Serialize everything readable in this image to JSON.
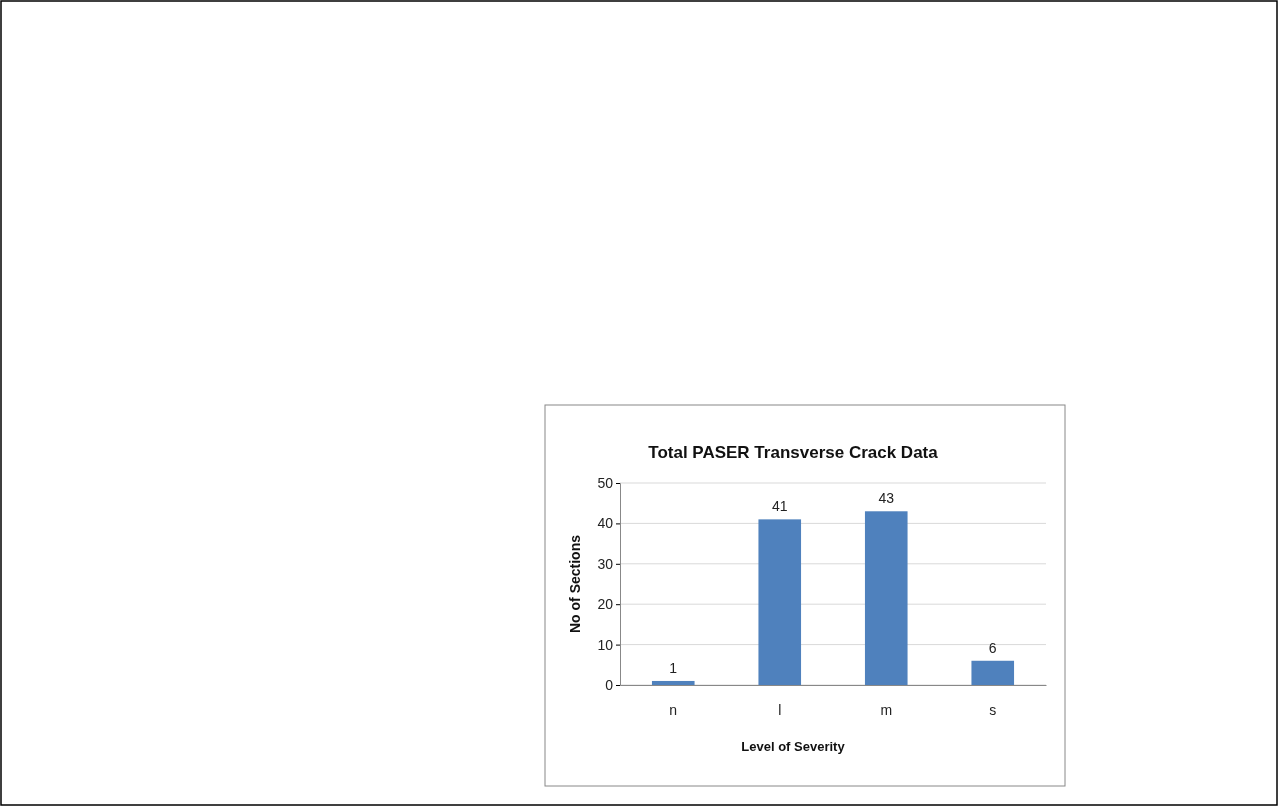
{
  "chart_data": {
    "type": "bar",
    "title": "Total PASER Transverse Crack Data",
    "xlabel": "Level of Severity",
    "ylabel": "No of Sections",
    "categories": [
      "n",
      "l",
      "m",
      "s"
    ],
    "values": [
      1,
      41,
      43,
      6
    ],
    "color": "#4f81bd",
    "ylim": [
      0,
      50
    ],
    "yticks": [
      0,
      10,
      20,
      30,
      40,
      50
    ],
    "grid": "y",
    "data_labels": true
  }
}
